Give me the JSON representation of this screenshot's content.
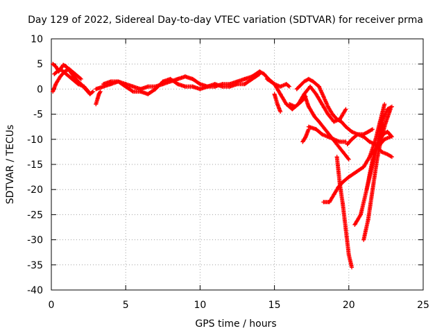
{
  "chart_data": {
    "type": "scatter",
    "title": "Day 129 of 2022, Sidereal Day-to-day VTEC variation (SDTVAR) for receiver prma",
    "xlabel": "GPS time / hours",
    "ylabel": "SDTVAR / TECUs",
    "xlim": [
      0,
      25
    ],
    "ylim": [
      -40,
      10
    ],
    "xticks": [
      0,
      5,
      10,
      15,
      20,
      25
    ],
    "yticks": [
      10,
      5,
      0,
      -5,
      -10,
      -15,
      -20,
      -25,
      -30,
      -35,
      -40
    ],
    "grid": true,
    "marker": "+",
    "color": "#ff0000",
    "series": [
      {
        "x": [
          0.1,
          0.3,
          0.5,
          0.8,
          1.0,
          1.2,
          1.5,
          1.8,
          2.0,
          2.3,
          2.6,
          2.8
        ],
        "y": [
          5.0,
          4.5,
          3.5,
          4.8,
          4.5,
          3.8,
          2.5,
          1.5,
          1.0,
          0.0,
          -1.0,
          -0.5
        ]
      },
      {
        "x": [
          0.1,
          0.3,
          0.6,
          0.9,
          1.2,
          1.6,
          2.0
        ],
        "y": [
          -0.5,
          1.0,
          2.5,
          3.5,
          4.0,
          3.0,
          2.0
        ]
      },
      {
        "x": [
          0.2,
          0.6,
          1.0,
          1.4,
          1.8,
          2.2,
          2.5
        ],
        "y": [
          3.0,
          4.0,
          3.0,
          2.0,
          1.0,
          0.5,
          -0.5
        ]
      },
      {
        "x": [
          3.0,
          3.1,
          3.2,
          3.3
        ],
        "y": [
          -3.0,
          -2.0,
          -1.0,
          -0.5
        ]
      },
      {
        "x": [
          3.0,
          3.5,
          4.0,
          4.5,
          5.0,
          5.5,
          6.0,
          6.5,
          7.0,
          7.5,
          8.0,
          8.5,
          9.0,
          9.5,
          10.0,
          10.5,
          11.0,
          11.5,
          12.0,
          12.5,
          13.0,
          13.5,
          14.0,
          14.3,
          14.6,
          15.0,
          15.4,
          15.8,
          16.0
        ],
        "y": [
          0.0,
          0.5,
          1.0,
          1.5,
          1.0,
          0.5,
          0.0,
          0.5,
          0.5,
          1.0,
          1.5,
          2.0,
          2.5,
          2.0,
          1.0,
          0.5,
          0.5,
          1.0,
          1.0,
          1.5,
          2.0,
          2.5,
          3.5,
          3.0,
          2.0,
          1.0,
          0.5,
          1.0,
          0.5
        ]
      },
      {
        "x": [
          3.5,
          4.0,
          4.5,
          5.0,
          5.5,
          6.0,
          6.5,
          7.0,
          7.5,
          8.0,
          8.5,
          9.0,
          9.5,
          10.0,
          10.5,
          11.0,
          11.5,
          12.0,
          12.5,
          13.0,
          13.5,
          14.0
        ],
        "y": [
          1.0,
          1.5,
          1.5,
          0.5,
          -0.5,
          -0.5,
          -1.0,
          0.0,
          1.5,
          2.0,
          1.0,
          0.5,
          0.5,
          0.0,
          0.5,
          1.0,
          0.5,
          0.5,
          1.0,
          1.0,
          2.0,
          3.0
        ]
      },
      {
        "x": [
          14.5,
          15.0,
          15.4,
          15.8,
          16.2,
          16.6,
          17.0,
          17.4,
          17.8,
          18.2,
          18.6,
          19.0,
          19.4,
          19.8
        ],
        "y": [
          2.0,
          1.0,
          -1.0,
          -3.0,
          -4.0,
          -3.0,
          -1.0,
          0.5,
          -1.0,
          -3.0,
          -5.0,
          -6.5,
          -6.0,
          -4.0
        ]
      },
      {
        "x": [
          15.0,
          15.2,
          15.4
        ],
        "y": [
          -1.0,
          -3.0,
          -4.5
        ]
      },
      {
        "x": [
          16.0,
          16.4,
          16.8,
          17.1
        ],
        "y": [
          -3.0,
          -3.5,
          -2.5,
          -1.5
        ]
      },
      {
        "x": [
          16.5,
          17.0,
          17.3,
          17.6,
          18.0,
          18.3,
          18.6,
          18.9,
          19.2,
          19.5,
          19.8,
          20.2,
          20.6,
          21.0,
          21.4,
          21.8,
          22.2,
          22.6,
          22.9
        ],
        "y": [
          0.0,
          1.5,
          2.0,
          1.5,
          0.5,
          -1.5,
          -3.5,
          -5.0,
          -6.0,
          -6.5,
          -7.5,
          -8.5,
          -9.0,
          -9.5,
          -10.5,
          -11.0,
          -12.5,
          -13.0,
          -13.5
        ]
      },
      {
        "x": [
          17.0,
          17.3,
          17.7,
          18.0,
          18.4,
          18.8,
          19.2,
          19.6,
          20.0
        ],
        "y": [
          -1.0,
          -3.5,
          -5.5,
          -6.5,
          -8.0,
          -9.5,
          -11.0,
          -12.5,
          -14.0
        ]
      },
      {
        "x": [
          16.9,
          17.1,
          17.3
        ],
        "y": [
          -10.5,
          -9.5,
          -8.0
        ]
      },
      {
        "x": [
          17.3,
          17.8,
          18.2,
          18.6,
          19.0,
          19.4,
          19.8
        ],
        "y": [
          -7.5,
          -8.0,
          -9.0,
          -9.5,
          -10.0,
          -10.5,
          -10.5
        ]
      },
      {
        "x": [
          18.3,
          18.7,
          19.0,
          19.3,
          19.6,
          20.0,
          20.5,
          21.0,
          21.4,
          21.8,
          22.1,
          22.4
        ],
        "y": [
          -22.5,
          -22.5,
          -21.0,
          -19.5,
          -18.5,
          -17.5,
          -16.5,
          -15.5,
          -13.5,
          -10.0,
          -6.5,
          -3.0
        ]
      },
      {
        "x": [
          19.2,
          19.4,
          19.6,
          19.8,
          20.0,
          20.2
        ],
        "y": [
          -13.5,
          -19.0,
          -23.0,
          -28.0,
          -33.0,
          -35.5
        ]
      },
      {
        "x": [
          19.9,
          20.2,
          20.6,
          21.0,
          21.3,
          21.6
        ],
        "y": [
          -11.0,
          -10.0,
          -9.0,
          -9.0,
          -8.5,
          -8.0
        ]
      },
      {
        "x": [
          20.4,
          20.8,
          21.2,
          21.6,
          22.0,
          22.3
        ],
        "y": [
          -27.0,
          -25.0,
          -20.0,
          -14.0,
          -10.0,
          -7.0
        ]
      },
      {
        "x": [
          21.0,
          21.3,
          21.6,
          21.9,
          22.2,
          22.5,
          22.8
        ],
        "y": [
          -30.0,
          -26.0,
          -20.0,
          -14.0,
          -9.5,
          -6.5,
          -4.0
        ]
      },
      {
        "x": [
          21.5,
          21.8,
          22.1,
          22.4,
          22.8
        ],
        "y": [
          -13.0,
          -12.0,
          -11.0,
          -10.0,
          -9.5
        ]
      },
      {
        "x": [
          21.2,
          21.6,
          21.9,
          22.3,
          22.6,
          22.9
        ],
        "y": [
          -20.0,
          -15.0,
          -11.5,
          -9.0,
          -8.5,
          -9.5
        ]
      },
      {
        "x": [
          22.0,
          22.3,
          22.6,
          22.9
        ],
        "y": [
          -10.0,
          -6.0,
          -4.0,
          -3.5
        ]
      }
    ]
  }
}
